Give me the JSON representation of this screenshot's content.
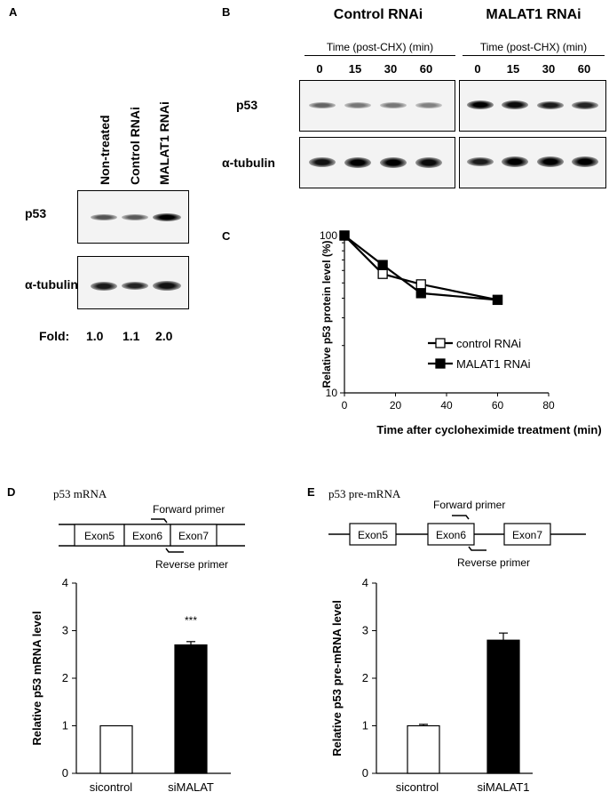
{
  "panel_labels": {
    "a": "A",
    "b": "B",
    "c": "C",
    "d": "D",
    "e": "E"
  },
  "panel_a": {
    "lanes": [
      "Non-treated",
      "Control RNAi",
      "MALAT1 RNAi"
    ],
    "rows": [
      "p53",
      "α-tubulin"
    ],
    "fold_label": "Fold:",
    "fold_values": [
      "1.0",
      "1.1",
      "2.0"
    ],
    "p53_band_intensity": [
      0.55,
      0.5,
      1.0
    ],
    "tubulin_band_intensity": [
      0.85,
      0.8,
      0.9
    ]
  },
  "panel_b": {
    "groups": [
      "Control RNAi",
      "MALAT1 RNAi"
    ],
    "time_label": "Time (post-CHX) (min)",
    "times": [
      "0",
      "15",
      "30",
      "60"
    ],
    "rows": [
      "p53",
      "α-tubulin"
    ],
    "control_p53_intensity": [
      0.45,
      0.35,
      0.35,
      0.3
    ],
    "malat1_p53_intensity": [
      1.0,
      0.95,
      0.85,
      0.8
    ],
    "control_tubulin_intensity": [
      0.9,
      1.0,
      1.0,
      0.95
    ],
    "malat1_tubulin_intensity": [
      0.85,
      1.0,
      1.0,
      1.0
    ]
  },
  "chart_data": [
    {
      "panel": "C",
      "type": "line",
      "xlabel": "Time after cycloheximide treatment (min)",
      "ylabel": "Relative p53 protein level (%)",
      "xlim": [
        0,
        80
      ],
      "ylim": [
        10,
        100
      ],
      "yscale": "log",
      "xticks": [
        "0",
        "20",
        "40",
        "60",
        "80"
      ],
      "yticks": [
        "10",
        "100"
      ],
      "legend_position": "bottom-right",
      "series": [
        {
          "name": "control RNAi",
          "marker": "open-square",
          "x": [
            0,
            15,
            30,
            60
          ],
          "y": [
            100,
            57,
            49,
            39
          ]
        },
        {
          "name": "MALAT1 RNAi",
          "marker": "filled-square",
          "x": [
            0,
            15,
            30,
            60
          ],
          "y": [
            100,
            65,
            43,
            39
          ]
        }
      ]
    },
    {
      "panel": "D",
      "type": "bar",
      "ylabel": "Relative p53 mRNA level",
      "ylim": [
        0,
        4
      ],
      "yticks": [
        "0",
        "1",
        "2",
        "3",
        "4"
      ],
      "categories": [
        "sicontrol",
        "siMALAT"
      ],
      "values": [
        1.0,
        2.7
      ],
      "errors": [
        0,
        0.07
      ],
      "colors": [
        "#ffffff",
        "#000000"
      ],
      "annotation": "***"
    },
    {
      "panel": "E",
      "type": "bar",
      "ylabel": "Relative p53 pre-mRNA level",
      "ylim": [
        0,
        4
      ],
      "yticks": [
        "0",
        "1",
        "2",
        "3",
        "4"
      ],
      "categories": [
        "sicontrol",
        "siMALAT1"
      ],
      "values": [
        1.0,
        2.8
      ],
      "errors": [
        0.03,
        0.15
      ],
      "colors": [
        "#ffffff",
        "#000000"
      ]
    }
  ],
  "panel_d_schematic": {
    "title": "p53 mRNA",
    "exons": [
      "Exon5",
      "Exon6",
      "Exon7"
    ],
    "forward": "Forward primer",
    "reverse": "Reverse primer"
  },
  "panel_e_schematic": {
    "title": "p53 pre-mRNA",
    "exons": [
      "Exon5",
      "Exon6",
      "Exon7"
    ],
    "forward": "Forward primer",
    "reverse": "Reverse primer"
  }
}
